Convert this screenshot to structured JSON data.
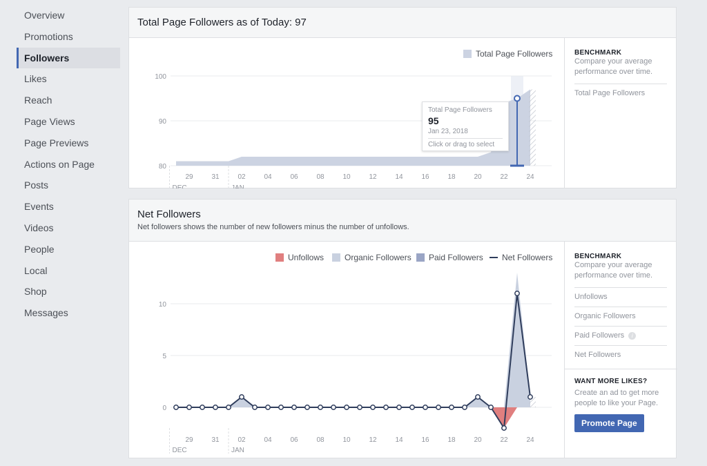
{
  "sidebar": {
    "items": [
      {
        "label": "Overview"
      },
      {
        "label": "Promotions"
      },
      {
        "label": "Followers",
        "active": true
      },
      {
        "label": "Likes"
      },
      {
        "label": "Reach"
      },
      {
        "label": "Page Views"
      },
      {
        "label": "Page Previews"
      },
      {
        "label": "Actions on Page"
      },
      {
        "label": "Posts"
      },
      {
        "label": "Events"
      },
      {
        "label": "Videos"
      },
      {
        "label": "People"
      },
      {
        "label": "Local"
      },
      {
        "label": "Shop"
      },
      {
        "label": "Messages"
      }
    ]
  },
  "total_card": {
    "title": "Total Page Followers as of Today: 97",
    "legend": "Total Page Followers",
    "tooltip": {
      "series": "Total Page Followers",
      "value": "95",
      "date": "Jan 23, 2018",
      "hint": "Click or drag to select"
    },
    "benchmark": {
      "title": "BENCHMARK",
      "desc": "Compare your average performance over time.",
      "items": [
        "Total Page Followers"
      ]
    }
  },
  "net_card": {
    "title": "Net Followers",
    "subtitle": "Net followers shows the number of new followers minus the number of unfollows.",
    "legend": [
      "Unfollows",
      "Organic Followers",
      "Paid Followers",
      "Net Followers"
    ],
    "benchmark": {
      "title": "BENCHMARK",
      "desc": "Compare your average performance over time.",
      "items": [
        "Unfollows",
        "Organic Followers",
        "Paid Followers",
        "Net Followers"
      ]
    },
    "promo": {
      "title": "WANT MORE LIKES?",
      "desc": "Create an ad to get more people to like your Page.",
      "button": "Promote Page"
    }
  },
  "colors": {
    "accent": "#4267b2",
    "area": "#ccd3e2",
    "unfollows": "#e07f7f",
    "organic": "#c9d1e0",
    "paid": "#9aa5c5",
    "net_line": "#2f3d5c"
  },
  "chart_data": [
    {
      "type": "area",
      "series": [
        {
          "name": "Total Page Followers",
          "x": [
            "Dec 28",
            "Dec 29",
            "Dec 30",
            "Dec 31",
            "Jan 1",
            "Jan 2",
            "Jan 3",
            "Jan 4",
            "Jan 5",
            "Jan 6",
            "Jan 7",
            "Jan 8",
            "Jan 9",
            "Jan 10",
            "Jan 11",
            "Jan 12",
            "Jan 13",
            "Jan 14",
            "Jan 15",
            "Jan 16",
            "Jan 17",
            "Jan 18",
            "Jan 19",
            "Jan 20",
            "Jan 21",
            "Jan 22",
            "Jan 23",
            "Jan 24"
          ],
          "values": [
            81,
            81,
            81,
            81,
            81,
            82,
            82,
            82,
            82,
            82,
            82,
            82,
            82,
            82,
            82,
            82,
            82,
            82,
            82,
            82,
            82,
            82,
            82,
            82,
            83,
            94,
            95,
            97
          ]
        }
      ],
      "x_ticks": [
        "29",
        "31",
        "02",
        "04",
        "06",
        "08",
        "10",
        "12",
        "14",
        "16",
        "18",
        "20",
        "22",
        "24"
      ],
      "x_groups": [
        "DEC",
        "JAN"
      ],
      "y_ticks": [
        80,
        90,
        100
      ],
      "ylim": [
        80,
        100
      ],
      "grid": true,
      "legend_position": "top-right",
      "highlight": {
        "x": "Jan 23",
        "value": 95
      }
    },
    {
      "type": "line",
      "x": [
        "Dec 28",
        "Dec 29",
        "Dec 30",
        "Dec 31",
        "Jan 1",
        "Jan 2",
        "Jan 3",
        "Jan 4",
        "Jan 5",
        "Jan 6",
        "Jan 7",
        "Jan 8",
        "Jan 9",
        "Jan 10",
        "Jan 11",
        "Jan 12",
        "Jan 13",
        "Jan 14",
        "Jan 15",
        "Jan 16",
        "Jan 17",
        "Jan 18",
        "Jan 19",
        "Jan 20",
        "Jan 21",
        "Jan 22",
        "Jan 23",
        "Jan 24"
      ],
      "series": [
        {
          "name": "Unfollows",
          "values": [
            0,
            0,
            0,
            0,
            0,
            0,
            0,
            0,
            0,
            0,
            0,
            0,
            0,
            0,
            0,
            0,
            0,
            0,
            0,
            0,
            0,
            0,
            0,
            0,
            0,
            -2,
            0,
            0
          ]
        },
        {
          "name": "Organic Followers",
          "values": [
            0,
            0,
            0,
            0,
            0,
            1,
            0,
            0,
            0,
            0,
            0,
            0,
            0,
            0,
            0,
            0,
            0,
            0,
            0,
            0,
            0,
            0,
            0,
            1,
            0,
            0,
            13,
            1
          ]
        },
        {
          "name": "Paid Followers",
          "values": [
            0,
            0,
            0,
            0,
            0,
            0,
            0,
            0,
            0,
            0,
            0,
            0,
            0,
            0,
            0,
            0,
            0,
            0,
            0,
            0,
            0,
            0,
            0,
            0,
            0,
            0,
            0,
            0
          ]
        },
        {
          "name": "Net Followers",
          "values": [
            0,
            0,
            0,
            0,
            0,
            1,
            0,
            0,
            0,
            0,
            0,
            0,
            0,
            0,
            0,
            0,
            0,
            0,
            0,
            0,
            0,
            0,
            0,
            1,
            0,
            -2,
            11,
            1
          ]
        }
      ],
      "x_ticks": [
        "29",
        "31",
        "02",
        "04",
        "06",
        "08",
        "10",
        "12",
        "14",
        "16",
        "18",
        "20",
        "22",
        "24"
      ],
      "x_groups": [
        "DEC",
        "JAN"
      ],
      "y_ticks": [
        0,
        5,
        10
      ],
      "grid": true,
      "legend_position": "top-right"
    }
  ]
}
